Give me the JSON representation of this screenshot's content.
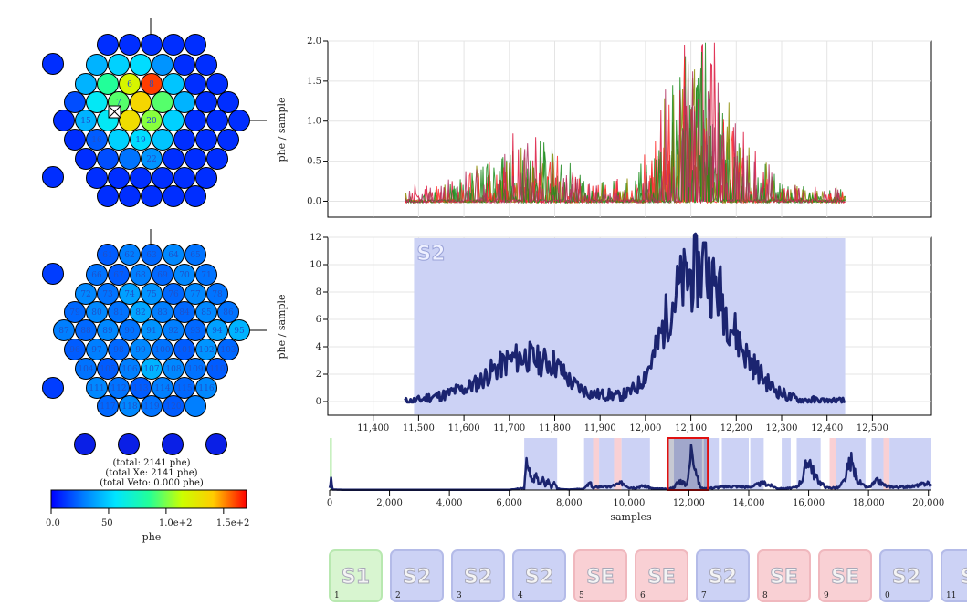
{
  "top_array": {
    "numbers": [
      "6",
      "8",
      "7",
      "15",
      "20",
      "16",
      "19",
      "22"
    ]
  },
  "bottom_array": {
    "numbers": [
      "61",
      "62",
      "63",
      "64",
      "65",
      "66",
      "67",
      "68",
      "69",
      "70",
      "71",
      "72",
      "73",
      "74",
      "75",
      "76",
      "77",
      "78",
      "79",
      "80",
      "81",
      "82",
      "83",
      "84",
      "85",
      "86",
      "87",
      "88",
      "89",
      "90",
      "91",
      "92",
      "93",
      "94",
      "95",
      "96",
      "97",
      "98",
      "99",
      "100",
      "101",
      "102",
      "103",
      "104",
      "105",
      "106",
      "107",
      "108",
      "109",
      "110",
      "111",
      "112",
      "113",
      "114",
      "115",
      "116",
      "117",
      "118",
      "119",
      "120"
    ]
  },
  "totals": {
    "total": "(total: 2141 phe)",
    "total_xe": "(total Xe: 2141 phe)",
    "total_veto": "(total Veto: 0.000 phe)"
  },
  "colorbar": {
    "ticks": [
      "0.0",
      "50",
      "1.0e+2",
      "1.5e+2"
    ],
    "tick_values": [
      0,
      50,
      100,
      150
    ],
    "max": 170,
    "label": "phe",
    "colors": [
      "#0000ff",
      "#0080ff",
      "#00e5ff",
      "#22ff99",
      "#ccff00",
      "#ffcc00",
      "#ff0000"
    ]
  },
  "chart_data": [
    {
      "type": "line",
      "name": "per-channel waveforms",
      "ylabel": "phe / sample",
      "ylim": [
        -0.2,
        2.0
      ],
      "yticks": [
        "0.0",
        "0.5",
        "1.0",
        "1.5",
        "2.0"
      ],
      "ytick_values": [
        0.0,
        0.5,
        1.0,
        1.5,
        2.0
      ],
      "xlim": [
        11300,
        12630
      ],
      "range": [
        11470,
        12440
      ],
      "colors": [
        "#228b22",
        "#dc143c",
        "#8b8b00",
        "#ff2a2a",
        "#1a8c1a",
        "#b03060"
      ]
    },
    {
      "type": "area",
      "name": "summed waveform",
      "label": "S2",
      "ylabel": "phe / sample",
      "ylim": [
        -1,
        12
      ],
      "yticks": [
        "0",
        "2",
        "4",
        "6",
        "8",
        "10",
        "12"
      ],
      "ytick_values": [
        0,
        2,
        4,
        6,
        8,
        10,
        12
      ],
      "xlim": [
        11300,
        12630
      ],
      "xticks": [
        "11,400",
        "11,500",
        "11,600",
        "11,700",
        "11,800",
        "11,900",
        "12,000",
        "12,100",
        "12,200",
        "12,300",
        "12,400",
        "12,500"
      ],
      "xtick_values": [
        11400,
        11500,
        11600,
        11700,
        11800,
        11900,
        12000,
        12100,
        12200,
        12300,
        12400,
        12500
      ],
      "highlight": [
        11490,
        12440
      ],
      "x": [
        11470,
        11480,
        11500,
        11520,
        11540,
        11560,
        11580,
        11600,
        11620,
        11640,
        11660,
        11680,
        11700,
        11720,
        11740,
        11760,
        11780,
        11800,
        11820,
        11840,
        11860,
        11880,
        11900,
        11920,
        11940,
        11960,
        11980,
        12000,
        12020,
        12040,
        12060,
        12080,
        12100,
        12120,
        12140,
        12160,
        12180,
        12200,
        12220,
        12240,
        12260,
        12280,
        12300,
        12320,
        12340,
        12360,
        12380,
        12400,
        12420,
        12440
      ],
      "values": [
        0,
        0,
        0.1,
        0.3,
        0.4,
        0.5,
        0.8,
        0.9,
        1.2,
        1.6,
        2.2,
        2.6,
        3.0,
        3.2,
        3.3,
        3.0,
        2.9,
        2.8,
        2.0,
        1.3,
        0.9,
        0.6,
        0.5,
        0.5,
        0.4,
        0.6,
        1.0,
        2.0,
        3.4,
        5.5,
        7.4,
        8.5,
        9.2,
        9.6,
        9.0,
        8.2,
        6.4,
        4.8,
        3.5,
        2.6,
        1.7,
        1.0,
        0.6,
        0.3,
        0.1,
        0.1,
        0.05,
        0,
        0,
        0
      ],
      "color": "#1b2470"
    },
    {
      "type": "line",
      "name": "event overview",
      "xlabel": "samples",
      "xlim": [
        0,
        20100
      ],
      "xticks": [
        "0",
        "2,000",
        "4,000",
        "6,000",
        "8,000",
        "10,000",
        "12,000",
        "14,000",
        "16,000",
        "18,000",
        "20,000"
      ],
      "xtick_values": [
        0,
        2000,
        4000,
        6000,
        8000,
        10000,
        12000,
        14000,
        16000,
        18000,
        20000
      ],
      "peak_regions": [
        {
          "type": "S1",
          "start": 0,
          "end": 80
        },
        {
          "type": "S2",
          "start": 6500,
          "end": 7600
        },
        {
          "type": "S2",
          "start": 8500,
          "end": 8800
        },
        {
          "type": "SE",
          "start": 8800,
          "end": 9000
        },
        {
          "type": "S2",
          "start": 9000,
          "end": 9500
        },
        {
          "type": "SE",
          "start": 9500,
          "end": 9750
        },
        {
          "type": "S2",
          "start": 9750,
          "end": 10700
        },
        {
          "type": "S2",
          "start": 11500,
          "end": 12440
        },
        {
          "type": "S2",
          "start": 12500,
          "end": 13000
        },
        {
          "type": "S2",
          "start": 13100,
          "end": 14000
        },
        {
          "type": "S2",
          "start": 14050,
          "end": 14500
        },
        {
          "type": "S2",
          "start": 15100,
          "end": 15400
        },
        {
          "type": "S2",
          "start": 15600,
          "end": 16400
        },
        {
          "type": "SE",
          "start": 16700,
          "end": 16900
        },
        {
          "type": "S2",
          "start": 16900,
          "end": 17900
        },
        {
          "type": "S2",
          "start": 18100,
          "end": 18500
        },
        {
          "type": "SE",
          "start": 18500,
          "end": 18700
        },
        {
          "type": "S2",
          "start": 18700,
          "end": 20100
        }
      ],
      "selection": [
        11300,
        12630
      ],
      "x": [
        0,
        50,
        100,
        500,
        1000,
        2000,
        3000,
        4000,
        5000,
        6000,
        6500,
        6600,
        6700,
        6800,
        6900,
        7000,
        7100,
        7200,
        7300,
        7400,
        7500,
        7600,
        7700,
        8000,
        8500,
        8700,
        8800,
        8900,
        9100,
        9300,
        9500,
        9800,
        10000,
        10200,
        10500,
        10800,
        11000,
        11300,
        11500,
        11600,
        11700,
        11800,
        11900,
        12000,
        12100,
        12200,
        12300,
        12400,
        12500,
        13000,
        13500,
        14000,
        14500,
        15000,
        15400,
        15600,
        15800,
        16000,
        16200,
        16400,
        16600,
        17000,
        17200,
        17400,
        17600,
        17800,
        18000,
        18300,
        18600,
        19000,
        19500,
        20000,
        20100
      ],
      "values": [
        0.5,
        2.0,
        0.1,
        0.05,
        0.05,
        0.05,
        0.05,
        0.05,
        0.05,
        0.05,
        0.4,
        7.0,
        2.6,
        2.0,
        3.5,
        1.5,
        2.4,
        1.0,
        2.0,
        0.6,
        1.4,
        0.3,
        0.2,
        0.1,
        0.3,
        1.5,
        0.4,
        0.6,
        0.8,
        0.6,
        1.0,
        1.5,
        0.6,
        0.5,
        0.9,
        0.3,
        0.3,
        0.2,
        0.6,
        1.4,
        2.0,
        1.6,
        1.0,
        3.5,
        10.0,
        6.0,
        2.0,
        0.5,
        0.3,
        0.6,
        0.8,
        0.6,
        1.5,
        0.3,
        0.4,
        0.6,
        2.5,
        7.0,
        3.0,
        1.5,
        0.5,
        0.5,
        2.0,
        6.5,
        2.5,
        1.0,
        0.5,
        2.0,
        0.8,
        0.6,
        0.8,
        1.5,
        0.8
      ],
      "ylim": [
        0,
        10.5
      ]
    }
  ],
  "peak_cards": [
    {
      "type": "S1",
      "index": "1"
    },
    {
      "type": "S2",
      "index": "2"
    },
    {
      "type": "S2",
      "index": "3"
    },
    {
      "type": "S2",
      "index": "4"
    },
    {
      "type": "SE",
      "index": "5"
    },
    {
      "type": "SE",
      "index": "6"
    },
    {
      "type": "S2",
      "index": "7"
    },
    {
      "type": "SE",
      "index": "8"
    },
    {
      "type": "SE",
      "index": "9"
    },
    {
      "type": "S2",
      "index": "0"
    },
    {
      "type": "S",
      "index": "11"
    }
  ],
  "peak_colors": {
    "S1": {
      "fill": "#d8f5d0",
      "stroke": "#b8e8b0",
      "band": "#c8f0c0"
    },
    "S2": {
      "fill": "#ccd2f5",
      "stroke": "#b4bbe8",
      "band": "#ccd2f5"
    },
    "SE": {
      "fill": "#f9d0d4",
      "stroke": "#f0b8be",
      "band": "#f9d0d4"
    }
  }
}
